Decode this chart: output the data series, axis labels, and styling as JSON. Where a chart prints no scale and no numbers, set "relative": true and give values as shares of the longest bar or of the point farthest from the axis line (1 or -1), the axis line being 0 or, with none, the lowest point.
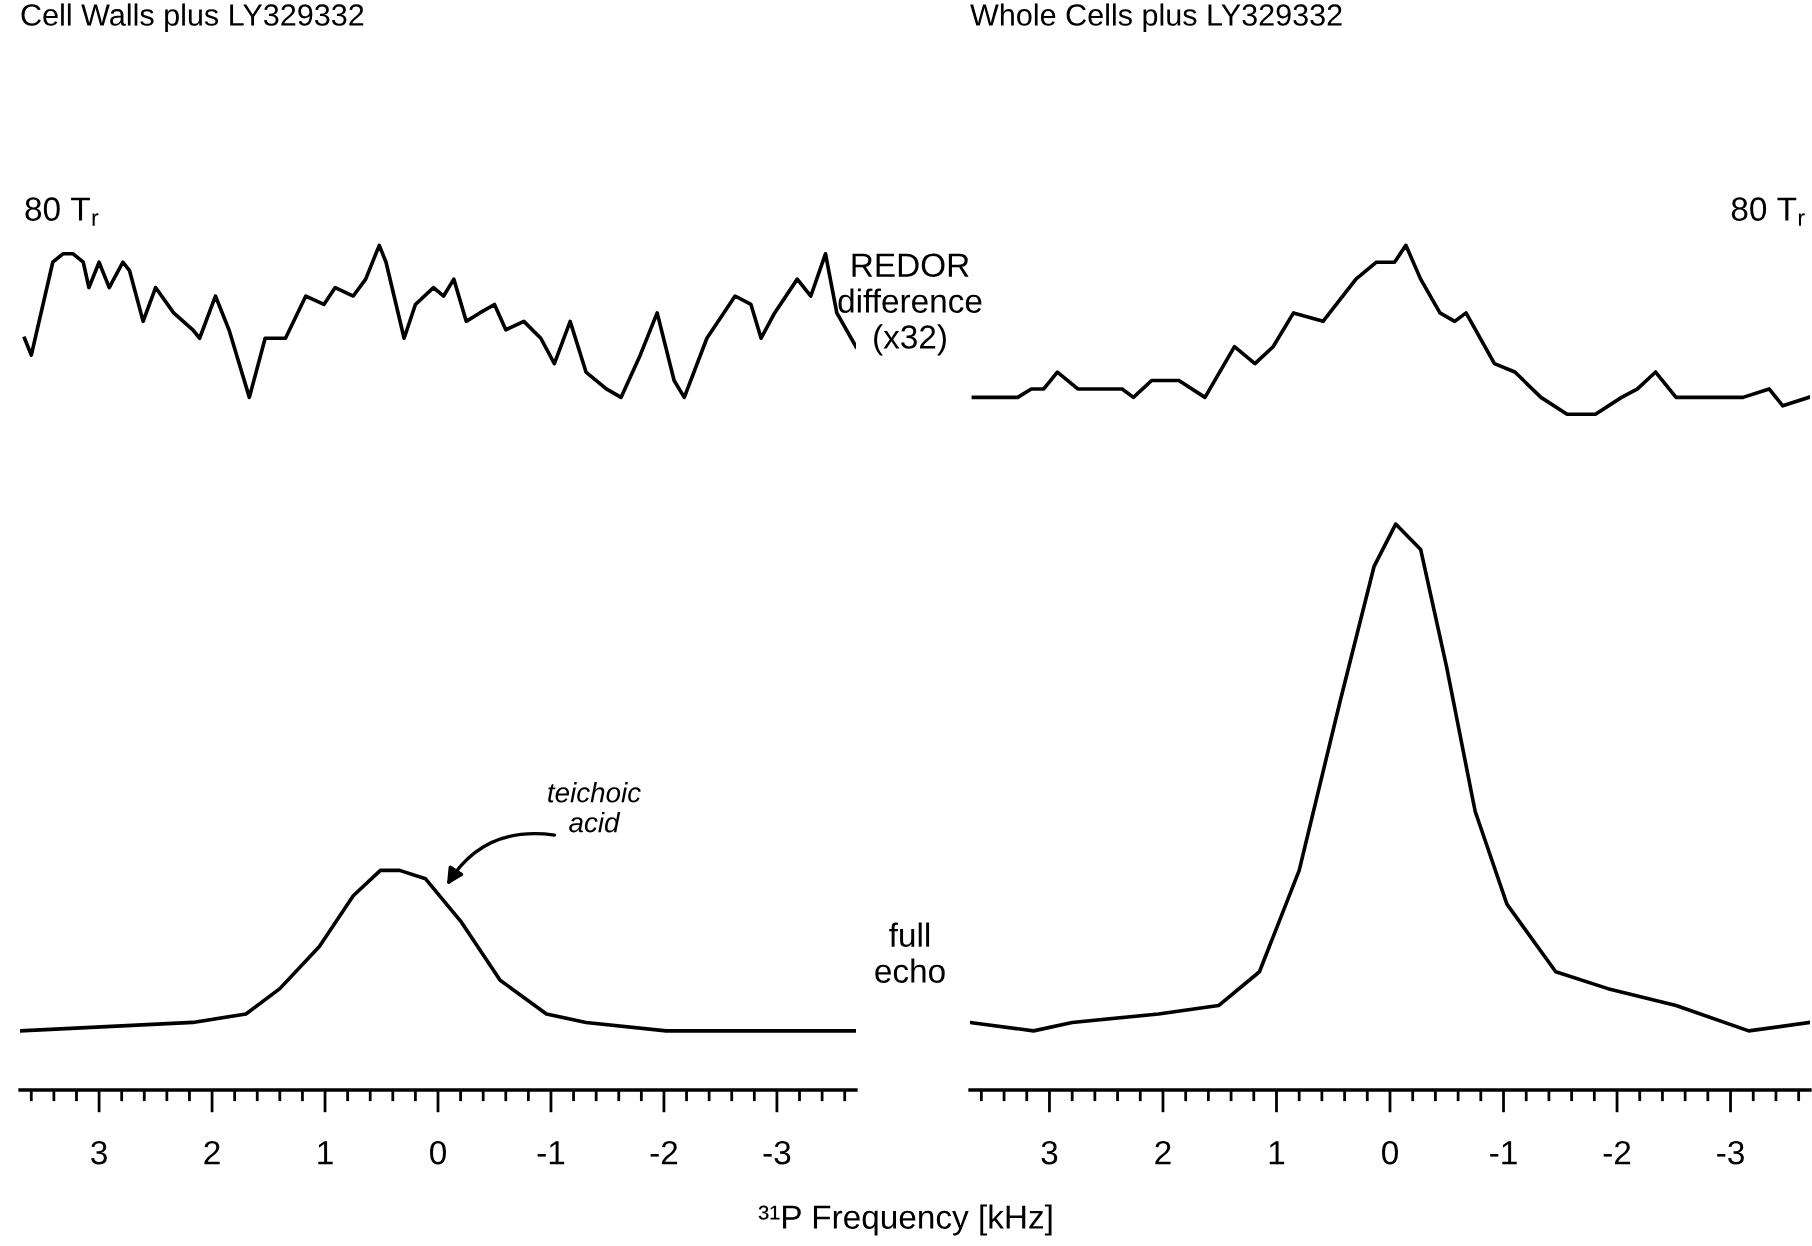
{
  "chart_data": [
    {
      "type": "line",
      "title": "Cell Walls plus LY329332",
      "xlabel": "³¹P Frequency [kHz]",
      "relative": true,
      "xlim": [
        3.7,
        -3.7
      ],
      "xticks": [
        3,
        2,
        1,
        0,
        -1,
        -2,
        -3
      ],
      "tick_labels": "x",
      "grid": false,
      "marker": "none",
      "line_style": "solid",
      "annotations": [
        "80 T$_{r}$",
        "REDOR\ndifference\n(x32)",
        "full\necho",
        "teichoic\nacid"
      ],
      "series": [
        {
          "color": "#000000",
          "x": [
            3.66,
            3.6,
            3.41,
            3.32,
            3.23,
            3.14,
            3.09,
            3.0,
            2.91,
            2.79,
            2.73,
            2.61,
            2.5,
            2.34,
            2.17,
            2.11,
            1.97,
            1.85,
            1.67,
            1.53,
            1.35,
            1.17,
            1.01,
            0.91,
            0.75,
            0.64,
            0.52,
            0.46,
            0.3,
            0.2,
            0.04,
            -0.05,
            -0.14,
            -0.25,
            -0.37,
            -0.5,
            -0.6,
            -0.76,
            -0.91,
            -1.03,
            -1.17,
            -1.31,
            -1.49,
            -1.62,
            -1.79,
            -1.94,
            -2.09,
            -2.18,
            -2.38,
            -2.63,
            -2.77,
            -2.86,
            -2.98,
            -3.18,
            -3.3,
            -3.43,
            -3.53,
            -3.7
          ],
          "values": [
            0.89,
            0.87,
            0.98,
            0.99,
            0.99,
            0.98,
            0.95,
            0.98,
            0.95,
            0.98,
            0.97,
            0.91,
            0.95,
            0.92,
            0.9,
            0.89,
            0.94,
            0.9,
            0.82,
            0.89,
            0.89,
            0.94,
            0.93,
            0.95,
            0.94,
            0.96,
            1.0,
            0.98,
            0.89,
            0.93,
            0.95,
            0.94,
            0.96,
            0.91,
            0.92,
            0.93,
            0.9,
            0.91,
            0.89,
            0.86,
            0.91,
            0.85,
            0.83,
            0.82,
            0.87,
            0.92,
            0.84,
            0.82,
            0.89,
            0.94,
            0.93,
            0.89,
            0.92,
            0.96,
            0.94,
            0.99,
            0.92,
            0.88
          ]
        },
        {
          "color": "#000000",
          "x": [
            3.7,
            2.17,
            1.7,
            1.4,
            1.05,
            0.75,
            0.51,
            0.34,
            0.11,
            -0.2,
            -0.55,
            -0.96,
            -1.31,
            -2.02,
            -3.09,
            -3.7
          ],
          "values": [
            0.07,
            0.08,
            0.09,
            0.12,
            0.17,
            0.23,
            0.26,
            0.26,
            0.25,
            0.2,
            0.13,
            0.09,
            0.08,
            0.07,
            0.07,
            0.07
          ]
        }
      ]
    },
    {
      "type": "line",
      "title": "Whole Cells plus LY329332",
      "relative": true,
      "xlim": [
        3.7,
        -3.7
      ],
      "xticks": [
        3,
        2,
        1,
        0,
        -1,
        -2,
        -3
      ],
      "tick_labels": "x",
      "grid": false,
      "marker": "none",
      "line_style": "solid",
      "annotations": [
        "80 T$_{r}$"
      ],
      "series": [
        {
          "color": "#000000",
          "x": [
            3.67,
            3.55,
            3.41,
            3.28,
            3.16,
            3.05,
            2.93,
            2.75,
            2.52,
            2.36,
            2.26,
            2.1,
            1.86,
            1.63,
            1.37,
            1.19,
            1.03,
            0.85,
            0.59,
            0.3,
            0.12,
            -0.04,
            -0.14,
            -0.27,
            -0.44,
            -0.57,
            -0.67,
            -0.92,
            -1.1,
            -1.33,
            -1.56,
            -1.81,
            -2.04,
            -2.18,
            -2.34,
            -2.52,
            -2.7,
            -2.88,
            -3.11,
            -3.34,
            -3.46,
            -3.69
          ],
          "values": [
            0.82,
            0.82,
            0.82,
            0.82,
            0.83,
            0.83,
            0.85,
            0.83,
            0.83,
            0.83,
            0.82,
            0.84,
            0.84,
            0.82,
            0.88,
            0.86,
            0.88,
            0.92,
            0.91,
            0.96,
            0.98,
            0.98,
            1.0,
            0.96,
            0.92,
            0.91,
            0.92,
            0.86,
            0.85,
            0.82,
            0.8,
            0.8,
            0.82,
            0.83,
            0.85,
            0.82,
            0.82,
            0.82,
            0.82,
            0.83,
            0.81,
            0.82
          ]
        },
        {
          "color": "#000000",
          "x": [
            3.7,
            3.14,
            2.8,
            2.04,
            1.51,
            1.15,
            0.8,
            0.44,
            0.14,
            -0.05,
            -0.27,
            -0.5,
            -0.75,
            -1.03,
            -1.46,
            -1.92,
            -2.52,
            -3.16,
            -3.7
          ],
          "values": [
            0.08,
            0.07,
            0.08,
            0.09,
            0.1,
            0.14,
            0.26,
            0.46,
            0.62,
            0.67,
            0.64,
            0.5,
            0.33,
            0.22,
            0.14,
            0.12,
            0.1,
            0.07,
            0.08
          ]
        }
      ]
    }
  ]
}
